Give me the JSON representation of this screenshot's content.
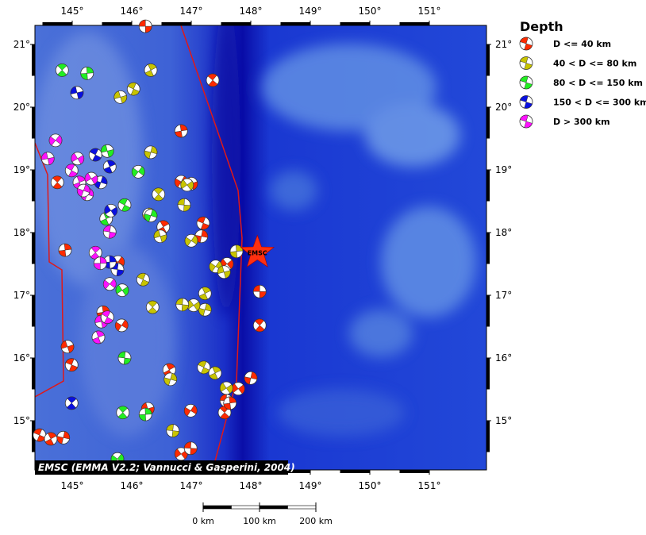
{
  "map": {
    "xticks": [
      {
        "value": 145,
        "label": "145°"
      },
      {
        "value": 146,
        "label": "146°"
      },
      {
        "value": 147,
        "label": "147°"
      },
      {
        "value": 148,
        "label": "148°"
      },
      {
        "value": 149,
        "label": "149°"
      },
      {
        "value": 150,
        "label": "150°"
      },
      {
        "value": 151,
        "label": "151°"
      }
    ],
    "yticks": [
      {
        "value": 15,
        "label": "15°"
      },
      {
        "value": 16,
        "label": "16°"
      },
      {
        "value": 17,
        "label": "17°"
      },
      {
        "value": 18,
        "label": "18°"
      },
      {
        "value": 19,
        "label": "19°"
      },
      {
        "value": 20,
        "label": "20°"
      },
      {
        "value": 21,
        "label": "21°"
      }
    ],
    "events": [
      {
        "lon": 146.23,
        "lat": 21.29,
        "class": 0
      },
      {
        "lon": 147.36,
        "lat": 20.43,
        "class": 0
      },
      {
        "lon": 146.83,
        "lat": 19.62,
        "class": 0
      },
      {
        "lon": 146.83,
        "lat": 18.81,
        "class": 0
      },
      {
        "lon": 147.0,
        "lat": 18.78,
        "class": 0
      },
      {
        "lon": 147.2,
        "lat": 18.15,
        "class": 0
      },
      {
        "lon": 146.53,
        "lat": 18.09,
        "class": 0
      },
      {
        "lon": 147.17,
        "lat": 17.94,
        "class": 0
      },
      {
        "lon": 147.6,
        "lat": 17.5,
        "class": 0
      },
      {
        "lon": 148.15,
        "lat": 17.06,
        "class": 0
      },
      {
        "lon": 148.15,
        "lat": 16.52,
        "class": 0
      },
      {
        "lon": 145.52,
        "lat": 16.73,
        "class": 0
      },
      {
        "lon": 145.83,
        "lat": 16.52,
        "class": 0
      },
      {
        "lon": 144.92,
        "lat": 16.18,
        "class": 0
      },
      {
        "lon": 144.99,
        "lat": 15.89,
        "class": 0
      },
      {
        "lon": 146.63,
        "lat": 15.81,
        "class": 0
      },
      {
        "lon": 148.0,
        "lat": 15.68,
        "class": 0
      },
      {
        "lon": 147.79,
        "lat": 15.51,
        "class": 0
      },
      {
        "lon": 147.59,
        "lat": 15.32,
        "class": 0
      },
      {
        "lon": 147.56,
        "lat": 15.13,
        "class": 0
      },
      {
        "lon": 147.65,
        "lat": 15.28,
        "class": 0
      },
      {
        "lon": 146.99,
        "lat": 15.16,
        "class": 0
      },
      {
        "lon": 146.27,
        "lat": 15.19,
        "class": 0
      },
      {
        "lon": 144.45,
        "lat": 14.77,
        "class": 0
      },
      {
        "lon": 144.64,
        "lat": 14.71,
        "class": 0
      },
      {
        "lon": 144.85,
        "lat": 14.73,
        "class": 0
      },
      {
        "lon": 146.83,
        "lat": 14.47,
        "class": 0
      },
      {
        "lon": 146.99,
        "lat": 14.56,
        "class": 0
      },
      {
        "lon": 144.75,
        "lat": 18.8,
        "class": 0
      },
      {
        "lon": 144.88,
        "lat": 17.72,
        "class": 0
      },
      {
        "lon": 145.77,
        "lat": 17.53,
        "class": 0
      },
      {
        "lon": 145.81,
        "lat": 20.16,
        "class": 1
      },
      {
        "lon": 146.03,
        "lat": 20.29,
        "class": 1
      },
      {
        "lon": 146.32,
        "lat": 20.59,
        "class": 1
      },
      {
        "lon": 146.32,
        "lat": 19.28,
        "class": 1
      },
      {
        "lon": 146.93,
        "lat": 18.76,
        "class": 1
      },
      {
        "lon": 146.88,
        "lat": 18.44,
        "class": 1
      },
      {
        "lon": 146.45,
        "lat": 18.61,
        "class": 1
      },
      {
        "lon": 146.29,
        "lat": 18.29,
        "class": 1
      },
      {
        "lon": 147.0,
        "lat": 17.87,
        "class": 1
      },
      {
        "lon": 146.48,
        "lat": 17.94,
        "class": 1
      },
      {
        "lon": 146.19,
        "lat": 17.25,
        "class": 1
      },
      {
        "lon": 147.23,
        "lat": 17.03,
        "class": 1
      },
      {
        "lon": 147.23,
        "lat": 16.77,
        "class": 1
      },
      {
        "lon": 147.04,
        "lat": 16.84,
        "class": 1
      },
      {
        "lon": 146.85,
        "lat": 16.85,
        "class": 1
      },
      {
        "lon": 146.35,
        "lat": 16.81,
        "class": 1
      },
      {
        "lon": 147.76,
        "lat": 17.7,
        "class": 1
      },
      {
        "lon": 147.41,
        "lat": 17.46,
        "class": 1
      },
      {
        "lon": 147.55,
        "lat": 17.37,
        "class": 1
      },
      {
        "lon": 147.21,
        "lat": 15.85,
        "class": 1
      },
      {
        "lon": 147.4,
        "lat": 15.76,
        "class": 1
      },
      {
        "lon": 146.65,
        "lat": 15.66,
        "class": 1
      },
      {
        "lon": 147.59,
        "lat": 15.52,
        "class": 1
      },
      {
        "lon": 146.69,
        "lat": 14.84,
        "class": 1
      },
      {
        "lon": 144.83,
        "lat": 20.59,
        "class": 2
      },
      {
        "lon": 145.25,
        "lat": 20.54,
        "class": 2
      },
      {
        "lon": 146.11,
        "lat": 18.97,
        "class": 2
      },
      {
        "lon": 145.59,
        "lat": 19.3,
        "class": 2
      },
      {
        "lon": 145.88,
        "lat": 18.44,
        "class": 2
      },
      {
        "lon": 145.57,
        "lat": 18.22,
        "class": 2
      },
      {
        "lon": 146.32,
        "lat": 18.27,
        "class": 2
      },
      {
        "lon": 145.84,
        "lat": 17.08,
        "class": 2
      },
      {
        "lon": 145.88,
        "lat": 16.0,
        "class": 2
      },
      {
        "lon": 145.85,
        "lat": 15.13,
        "class": 2
      },
      {
        "lon": 146.23,
        "lat": 15.1,
        "class": 2
      },
      {
        "lon": 145.76,
        "lat": 14.39,
        "class": 2
      },
      {
        "lon": 145.08,
        "lat": 20.23,
        "class": 3
      },
      {
        "lon": 145.39,
        "lat": 19.24,
        "class": 3
      },
      {
        "lon": 145.63,
        "lat": 19.05,
        "class": 3
      },
      {
        "lon": 145.48,
        "lat": 18.8,
        "class": 3
      },
      {
        "lon": 145.65,
        "lat": 18.35,
        "class": 3
      },
      {
        "lon": 145.76,
        "lat": 17.41,
        "class": 3
      },
      {
        "lon": 144.99,
        "lat": 15.28,
        "class": 3
      },
      {
        "lon": 145.63,
        "lat": 17.53,
        "class": 3
      },
      {
        "lon": 144.72,
        "lat": 19.47,
        "class": 4
      },
      {
        "lon": 144.59,
        "lat": 19.18,
        "class": 4
      },
      {
        "lon": 144.99,
        "lat": 18.99,
        "class": 4
      },
      {
        "lon": 145.12,
        "lat": 18.8,
        "class": 4
      },
      {
        "lon": 145.25,
        "lat": 18.61,
        "class": 4
      },
      {
        "lon": 145.09,
        "lat": 19.18,
        "class": 4
      },
      {
        "lon": 145.63,
        "lat": 18.01,
        "class": 4
      },
      {
        "lon": 145.39,
        "lat": 17.68,
        "class": 4
      },
      {
        "lon": 145.47,
        "lat": 17.51,
        "class": 4
      },
      {
        "lon": 145.63,
        "lat": 17.18,
        "class": 4
      },
      {
        "lon": 145.49,
        "lat": 16.58,
        "class": 4
      },
      {
        "lon": 145.59,
        "lat": 16.65,
        "class": 4
      },
      {
        "lon": 145.44,
        "lat": 16.33,
        "class": 4
      },
      {
        "lon": 145.19,
        "lat": 18.67,
        "class": 4
      },
      {
        "lon": 145.32,
        "lat": 18.86,
        "class": 4
      }
    ],
    "epicenter": {
      "lon": 148.11,
      "lat": 17.68,
      "label": "EMSC"
    },
    "credit": "EMSC (EMMA V2.2; Vannucci & Gasperini, 2004)"
  },
  "legend": {
    "title": "Depth",
    "classes": [
      {
        "label": "D <= 40 km",
        "color": "#ff2a00"
      },
      {
        "label": "40 < D <= 80 km",
        "color": "#c8c400"
      },
      {
        "label": "80 < D <= 150 km",
        "color": "#22ee22"
      },
      {
        "label": "150 < D <= 300 km",
        "color": "#0a10e0"
      },
      {
        "label": "D > 300 km",
        "color": "#ff10ff"
      }
    ]
  },
  "scalebar": {
    "ticks": [
      {
        "value": 0,
        "label": "0 km"
      },
      {
        "value": 100,
        "label": "100 km"
      },
      {
        "value": 200,
        "label": "200 km"
      }
    ]
  }
}
